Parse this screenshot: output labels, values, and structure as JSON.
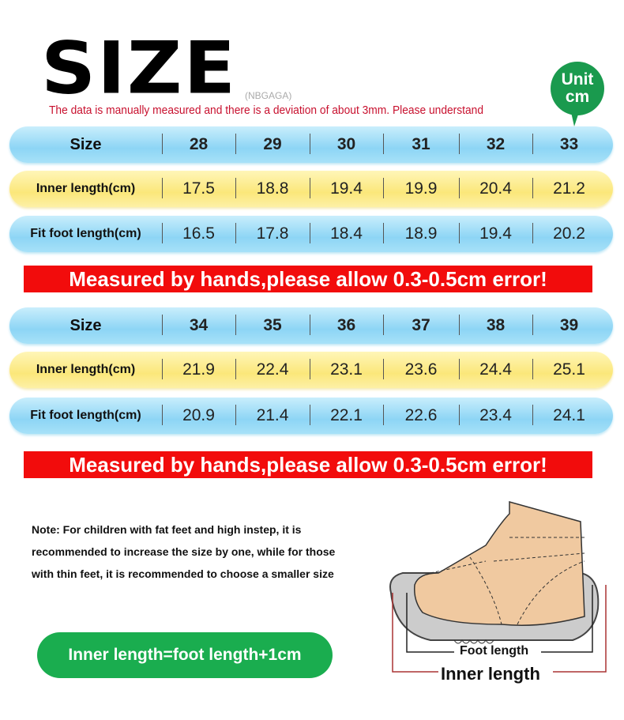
{
  "header": {
    "title": "SIZE",
    "brand": "(NBGAGA)",
    "deviation_note": "The data is manually measured and there is a deviation of about 3mm. Please understand",
    "unit_line1": "Unit",
    "unit_line2": "cm"
  },
  "tables": [
    {
      "rows": [
        {
          "label": "Size",
          "values": [
            "28",
            "29",
            "30",
            "31",
            "32",
            "33"
          ],
          "color": "blue"
        },
        {
          "label": "Inner length(cm)",
          "values": [
            "17.5",
            "18.8",
            "19.4",
            "19.9",
            "20.4",
            "21.2"
          ],
          "color": "yellow"
        },
        {
          "label": "Fit foot length(cm)",
          "values": [
            "16.5",
            "17.8",
            "18.4",
            "18.9",
            "19.4",
            "20.2"
          ],
          "color": "blue"
        }
      ],
      "warning": "Measured by hands,please allow 0.3-0.5cm error!"
    },
    {
      "rows": [
        {
          "label": "Size",
          "values": [
            "34",
            "35",
            "36",
            "37",
            "38",
            "39"
          ],
          "color": "blue"
        },
        {
          "label": "Inner length(cm)",
          "values": [
            "21.9",
            "22.4",
            "23.1",
            "23.6",
            "24.4",
            "25.1"
          ],
          "color": "yellow"
        },
        {
          "label": "Fit foot length(cm)",
          "values": [
            "20.9",
            "21.4",
            "22.1",
            "22.6",
            "23.4",
            "24.1"
          ],
          "color": "blue"
        }
      ],
      "warning": "Measured by hands,please allow 0.3-0.5cm error!"
    }
  ],
  "note": "Note: For children with fat feet and high instep, it is recommended to increase the size by one, while for those with thin feet, it is recommended to choose a smaller size",
  "formula": "Inner length=foot length+1cm",
  "diagram": {
    "foot_length": "Foot length",
    "inner_length": "Inner length"
  },
  "colors": {
    "warning": "#f20c0c",
    "green": "#1aad4f",
    "blue_row": "#8dd5f5",
    "yellow_row": "#fbe77a"
  }
}
